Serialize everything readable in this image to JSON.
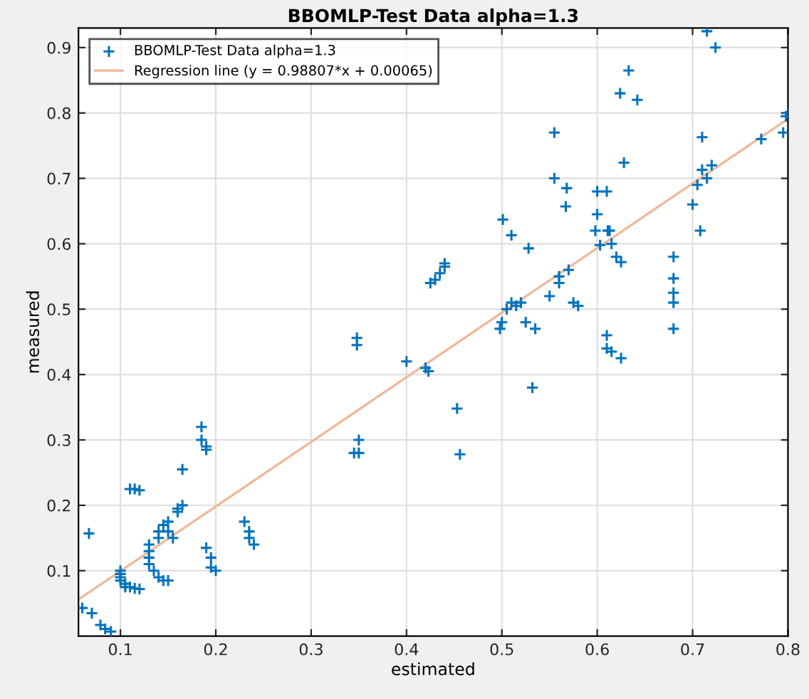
{
  "chart_data": {
    "type": "scatter",
    "title": "BBOMLP-Test Data alpha=1.3",
    "xlabel": "estimated",
    "ylabel": "measured",
    "xlim": [
      0.056,
      0.8
    ],
    "ylim": [
      0,
      0.93
    ],
    "xticks": [
      0.1,
      0.2,
      0.3,
      0.4,
      0.5,
      0.6,
      0.7,
      0.8
    ],
    "yticks": [
      0.1,
      0.2,
      0.3,
      0.4,
      0.5,
      0.6,
      0.7,
      0.8,
      0.9
    ],
    "grid": true,
    "legend": "top left",
    "series": [
      {
        "name": "BBOMLP-Test Data alpha=1.3",
        "marker": "cross",
        "color": "#0072bd",
        "x": [
          0.06,
          0.07,
          0.079,
          0.084,
          0.09,
          0.067,
          0.1,
          0.1,
          0.1,
          0.105,
          0.11,
          0.115,
          0.1,
          0.105,
          0.12,
          0.11,
          0.115,
          0.12,
          0.13,
          0.13,
          0.13,
          0.13,
          0.135,
          0.14,
          0.145,
          0.15,
          0.14,
          0.14,
          0.145,
          0.15,
          0.15,
          0.155,
          0.16,
          0.165,
          0.16,
          0.165,
          0.185,
          0.185,
          0.19,
          0.19,
          0.19,
          0.195,
          0.195,
          0.2,
          0.23,
          0.235,
          0.235,
          0.24,
          0.345,
          0.35,
          0.35,
          0.348,
          0.348,
          0.4,
          0.42,
          0.423,
          0.425,
          0.43,
          0.435,
          0.44,
          0.44,
          0.453,
          0.456,
          0.498,
          0.501,
          0.51,
          0.505,
          0.51,
          0.515,
          0.52,
          0.5,
          0.525,
          0.528,
          0.532,
          0.535,
          0.555,
          0.555,
          0.568,
          0.567,
          0.55,
          0.56,
          0.57,
          0.56,
          0.575,
          0.58,
          0.598,
          0.6,
          0.6,
          0.603,
          0.61,
          0.611,
          0.613,
          0.615,
          0.62,
          0.625,
          0.628,
          0.624,
          0.633,
          0.642,
          0.61,
          0.61,
          0.615,
          0.625,
          0.68,
          0.68,
          0.68,
          0.68,
          0.68,
          0.7,
          0.705,
          0.71,
          0.715,
          0.72,
          0.708,
          0.71,
          0.715,
          0.724,
          0.772,
          0.795,
          0.798,
          0.8
        ],
        "values": [
          0.043,
          0.035,
          0.017,
          0.011,
          0.007,
          0.157,
          0.1,
          0.09,
          0.085,
          0.08,
          0.075,
          0.073,
          0.095,
          0.075,
          0.072,
          0.225,
          0.225,
          0.223,
          0.14,
          0.13,
          0.12,
          0.11,
          0.1,
          0.09,
          0.085,
          0.085,
          0.15,
          0.16,
          0.17,
          0.175,
          0.16,
          0.15,
          0.19,
          0.2,
          0.195,
          0.255,
          0.32,
          0.3,
          0.29,
          0.285,
          0.135,
          0.12,
          0.105,
          0.1,
          0.175,
          0.16,
          0.15,
          0.14,
          0.28,
          0.28,
          0.3,
          0.456,
          0.445,
          0.42,
          0.41,
          0.405,
          0.54,
          0.545,
          0.555,
          0.565,
          0.57,
          0.348,
          0.278,
          0.47,
          0.637,
          0.613,
          0.5,
          0.51,
          0.505,
          0.51,
          0.48,
          0.48,
          0.593,
          0.38,
          0.47,
          0.77,
          0.7,
          0.685,
          0.657,
          0.52,
          0.54,
          0.56,
          0.55,
          0.51,
          0.505,
          0.62,
          0.68,
          0.645,
          0.598,
          0.68,
          0.62,
          0.62,
          0.6,
          0.58,
          0.572,
          0.724,
          0.83,
          0.865,
          0.82,
          0.46,
          0.44,
          0.435,
          0.425,
          0.58,
          0.547,
          0.525,
          0.51,
          0.47,
          0.66,
          0.69,
          0.713,
          0.7,
          0.72,
          0.62,
          0.763,
          0.925,
          0.9,
          0.76,
          0.77,
          0.795,
          0.8
        ]
      },
      {
        "name": "Regression line (y = 0.98807*x + 0.00065)",
        "type": "line",
        "marker": "none",
        "line_style": "solid",
        "color": "#f0b89a",
        "x": [
          0.056,
          0.8
        ],
        "values": [
          0.056,
          0.791
        ]
      }
    ]
  }
}
